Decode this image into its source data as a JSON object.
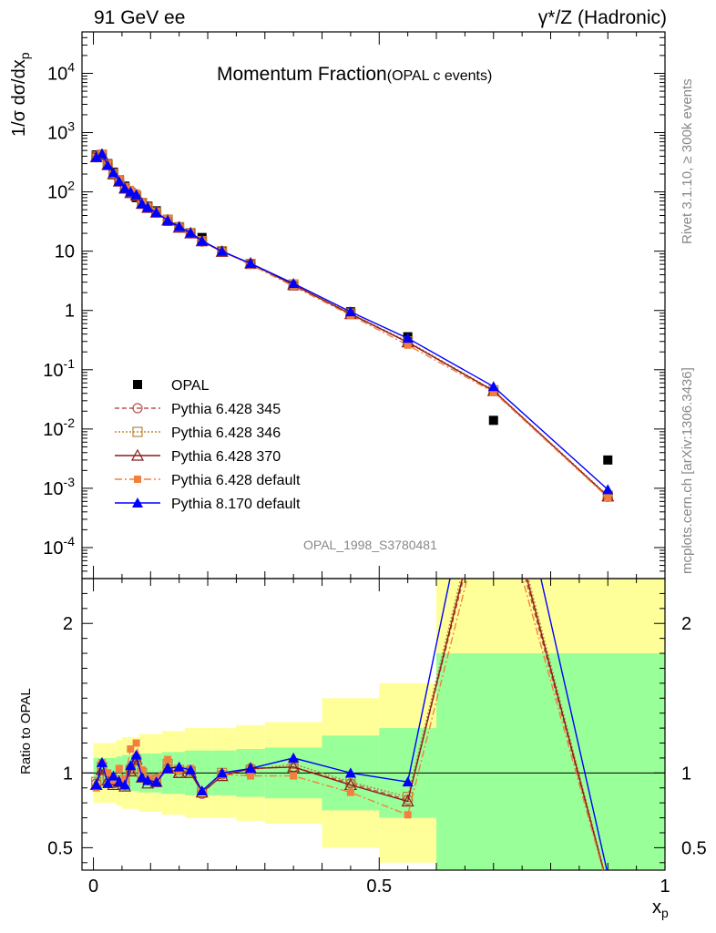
{
  "header": {
    "energy": "91 GeV ee",
    "process": "γ*/Z (Hadronic)",
    "title": "Momentum Fraction",
    "subtitle": "(OPAL c events)",
    "analysis": "OPAL_1998_S3780481",
    "rivet": "Rivet 3.1.10, ≥ 300k events",
    "source": "mcplots.cern.ch [arXiv:1306.3436]"
  },
  "chart_data": [
    {
      "type": "scatter",
      "panel": "main",
      "ylabel": "1/σ dσ/dx_p",
      "yscale": "log",
      "ylim": [
        3e-05,
        50000
      ],
      "xlim": [
        -0.02,
        1.0
      ],
      "y_tick_labels": [
        "10^-4",
        "10^-3",
        "10^-2",
        "10^-1",
        "1",
        "10",
        "10^2",
        "10^3",
        "10^4"
      ],
      "legend": [
        "OPAL",
        "Pythia 6.428 345",
        "Pythia 6.428 346",
        "Pythia 6.428 370",
        "Pythia 6.428 default",
        "Pythia 8.170 default"
      ],
      "x": [
        0.005,
        0.015,
        0.025,
        0.035,
        0.045,
        0.055,
        0.065,
        0.075,
        0.085,
        0.095,
        0.11,
        0.13,
        0.15,
        0.17,
        0.19,
        0.225,
        0.275,
        0.35,
        0.45,
        0.55,
        0.7,
        0.9
      ],
      "series": [
        {
          "name": "OPAL",
          "color": "#000000",
          "marker": "square",
          "values": [
            420,
            410,
            300,
            215,
            160,
            125,
            95,
            80,
            65,
            58,
            48,
            32,
            25,
            20,
            17,
            10,
            6,
            2.6,
            0.95,
            0.36,
            0.014,
            0.003
          ],
          "band_rel": [
            0.1,
            0.1,
            0.1,
            0.1,
            0.11,
            0.12,
            0.12,
            0.12,
            0.13,
            0.13,
            0.13,
            0.14,
            0.14,
            0.15,
            0.15,
            0.15,
            0.16,
            0.17,
            0.25,
            0.3,
            0.8,
            0.8
          ]
        },
        {
          "name": "Pythia 6.428 345",
          "color": "#c0504d",
          "marker": "circle",
          "dash": "5,3",
          "values": [
            390,
            430,
            290,
            200,
            155,
            115,
            98,
            88,
            64,
            55,
            46,
            33,
            25,
            20,
            14.5,
            9.9,
            6.2,
            2.7,
            0.88,
            0.29,
            0.044,
            0.00072
          ]
        },
        {
          "name": "Pythia 6.428 346",
          "color": "#b8863b",
          "marker": "square-open",
          "dash": "2,2",
          "values": [
            395,
            425,
            288,
            203,
            152,
            117,
            97,
            86,
            65,
            56,
            45,
            34,
            25.5,
            20.2,
            14.8,
            10,
            6.1,
            2.75,
            0.89,
            0.3,
            0.045,
            0.00075
          ]
        },
        {
          "name": "Pythia 6.428 370",
          "color": "#8b1a1a",
          "marker": "triangle-open",
          "dash": "",
          "values": [
            385,
            420,
            285,
            198,
            150,
            114,
            96,
            87,
            63,
            54,
            45,
            33,
            25,
            20,
            14.8,
            9.8,
            6.2,
            2.7,
            0.87,
            0.29,
            0.044,
            0.00073
          ]
        },
        {
          "name": "Pythia 6.428 default",
          "color": "#f47f3c",
          "marker": "square-filled",
          "dash": "8,3,2,3",
          "values": [
            380,
            440,
            300,
            205,
            165,
            120,
            110,
            96,
            66,
            56,
            46,
            35,
            25.5,
            20.5,
            15,
            9.9,
            5.9,
            2.55,
            0.83,
            0.26,
            0.042,
            0.0007
          ]
        },
        {
          "name": "Pythia 8.170 default",
          "color": "#0000ff",
          "marker": "triangle-filled",
          "dash": "",
          "values": [
            385,
            440,
            280,
            210,
            150,
            115,
            100,
            90,
            63,
            55,
            45,
            33,
            26,
            20.5,
            15,
            10,
            6.2,
            2.85,
            0.95,
            0.34,
            0.052,
            0.00095
          ]
        }
      ]
    },
    {
      "type": "line",
      "panel": "ratio",
      "ylabel": "Ratio to OPAL",
      "xlabel": "x_p",
      "xlim": [
        -0.02,
        1.0
      ],
      "ylim": [
        0.35,
        2.3
      ],
      "x_tick_labels": [
        "0",
        "0.5",
        "1"
      ],
      "y_tick_labels": [
        "0.5",
        "1",
        "2"
      ],
      "ratios": [
        {
          "name": "Pythia 6.428 345",
          "values": [
            0.93,
            1.05,
            0.97,
            0.93,
            0.97,
            0.92,
            1.03,
            1.1,
            0.98,
            0.95,
            0.96,
            1.03,
            1.0,
            1.02,
            0.86,
            0.99,
            1.03,
            1.04,
            0.93,
            0.82,
            3.1,
            0.24
          ]
        },
        {
          "name": "Pythia 6.428 346",
          "values": [
            0.94,
            1.04,
            0.96,
            0.94,
            0.95,
            0.93,
            1.02,
            1.08,
            1.0,
            0.96,
            0.94,
            1.06,
            1.02,
            1.01,
            0.87,
            1.0,
            1.02,
            1.06,
            0.94,
            0.84,
            3.2,
            0.25
          ]
        },
        {
          "name": "Pythia 6.428 370",
          "values": [
            0.92,
            1.02,
            0.95,
            0.92,
            0.94,
            0.91,
            1.01,
            1.09,
            0.97,
            0.93,
            0.94,
            1.03,
            1.0,
            1.0,
            0.87,
            0.98,
            1.03,
            1.04,
            0.92,
            0.81,
            3.15,
            0.24
          ]
        },
        {
          "name": "Pythia 6.428 default",
          "values": [
            0.9,
            1.07,
            1.0,
            0.95,
            1.03,
            0.96,
            1.16,
            1.2,
            1.02,
            0.96,
            0.96,
            1.09,
            1.02,
            1.03,
            0.88,
            0.99,
            0.98,
            0.98,
            0.87,
            0.72,
            3.0,
            0.23
          ]
        },
        {
          "name": "Pythia 8.170 default",
          "values": [
            0.92,
            1.07,
            0.93,
            0.98,
            0.94,
            0.92,
            1.05,
            1.12,
            0.97,
            0.95,
            0.94,
            1.03,
            1.04,
            1.02,
            0.88,
            1.0,
            1.03,
            1.1,
            1.0,
            0.94,
            3.7,
            0.32
          ]
        }
      ]
    }
  ]
}
